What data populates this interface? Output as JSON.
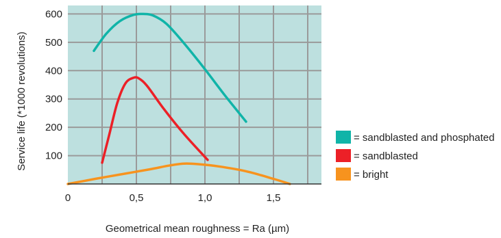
{
  "chart_data": {
    "type": "line",
    "title": "",
    "xlabel": "Geometrical mean roughness = Ra (µm)",
    "ylabel": "Service life (*1000 revolutions)",
    "xlim": [
      0,
      1.85
    ],
    "ylim": [
      0,
      630
    ],
    "x_ticks": [
      0,
      0.5,
      1.0,
      1.5
    ],
    "x_tick_labels": [
      "0",
      "0,5",
      "1,0",
      "1,5"
    ],
    "y_ticks": [
      100,
      200,
      300,
      400,
      500,
      600
    ],
    "y_tick_labels": [
      "100",
      "200",
      "300",
      "400",
      "500",
      "600"
    ],
    "x_grid": [
      0.25,
      0.5,
      0.75,
      1.0,
      1.25,
      1.5,
      1.75
    ],
    "grid": true,
    "background_color": "#bde0df",
    "grid_color": "#9a9a9a",
    "legend_position": "right",
    "series": [
      {
        "name": "= sandblasted and phosphated",
        "color": "#10b4a8",
        "x": [
          0.19,
          0.28,
          0.38,
          0.48,
          0.55,
          0.62,
          0.72,
          0.85,
          1.0,
          1.15,
          1.3
        ],
        "y": [
          470,
          530,
          575,
          597,
          600,
          595,
          565,
          495,
          405,
          310,
          220
        ]
      },
      {
        "name": "= sandblasted",
        "color": "#ec2027",
        "x": [
          0.25,
          0.3,
          0.36,
          0.42,
          0.48,
          0.52,
          0.58,
          0.7,
          0.85,
          1.02
        ],
        "y": [
          75,
          170,
          285,
          355,
          375,
          372,
          345,
          265,
          175,
          85
        ]
      },
      {
        "name": "= bright",
        "color": "#f7931e",
        "x": [
          0.0,
          0.2,
          0.4,
          0.6,
          0.75,
          0.85,
          0.95,
          1.1,
          1.3,
          1.5,
          1.62
        ],
        "y": [
          0,
          18,
          35,
          52,
          66,
          72,
          70,
          62,
          45,
          18,
          0
        ]
      }
    ]
  }
}
